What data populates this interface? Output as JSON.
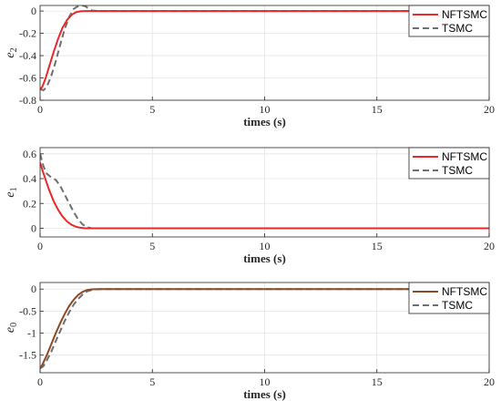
{
  "chart_data": [
    {
      "type": "line",
      "xlabel": "times (s)",
      "ylabel": "e",
      "ylabel_sub": "2",
      "xlim": [
        0,
        20
      ],
      "ylim": [
        -0.8,
        0.05
      ],
      "xticks": [
        0,
        5,
        10,
        15,
        20
      ],
      "yticks": [
        0,
        -0.2,
        -0.4,
        -0.6,
        -0.8
      ],
      "ytick_labels": [
        "0",
        "-0.2",
        "-0.4",
        "-0.6",
        "-0.8"
      ],
      "grid": true,
      "legend_position": "top-right",
      "series": [
        {
          "name": "NFTSMC",
          "color": "#e8282a",
          "dash": "solid",
          "x": [
            0,
            0.1,
            0.25,
            0.4,
            0.6,
            0.8,
            1.0,
            1.2,
            1.4,
            1.6,
            1.8,
            2.0,
            2.3,
            20
          ],
          "y": [
            -0.7,
            -0.68,
            -0.6,
            -0.5,
            -0.37,
            -0.25,
            -0.15,
            -0.08,
            -0.035,
            -0.01,
            -0.002,
            0,
            0,
            0
          ]
        },
        {
          "name": "TSMC",
          "color": "#6e6e6e",
          "dash": "dashed",
          "x": [
            0,
            0.15,
            0.3,
            0.5,
            0.7,
            0.9,
            1.1,
            1.3,
            1.5,
            1.7,
            1.85,
            2.0,
            2.15,
            2.3,
            2.6,
            20
          ],
          "y": [
            -0.7,
            -0.71,
            -0.68,
            -0.58,
            -0.45,
            -0.3,
            -0.16,
            -0.05,
            0.02,
            0.045,
            0.05,
            0.045,
            0.025,
            0.005,
            0,
            0
          ]
        }
      ]
    },
    {
      "type": "line",
      "xlabel": "times (s)",
      "ylabel": "e",
      "ylabel_sub": "1",
      "xlim": [
        0,
        20
      ],
      "ylim": [
        -0.07,
        0.65
      ],
      "xticks": [
        0,
        5,
        10,
        15,
        20
      ],
      "yticks": [
        0.6,
        0.4,
        0.2,
        0
      ],
      "ytick_labels": [
        "0.6",
        "0.4",
        "0.2",
        "0"
      ],
      "grid": true,
      "legend_position": "top-right",
      "series": [
        {
          "name": "NFTSMC",
          "color": "#e8282a",
          "dash": "solid",
          "x": [
            0,
            0.1,
            0.25,
            0.4,
            0.6,
            0.8,
            1.0,
            1.2,
            1.4,
            1.6,
            1.8,
            2.0,
            2.5,
            20
          ],
          "y": [
            0.53,
            0.47,
            0.39,
            0.31,
            0.22,
            0.15,
            0.095,
            0.055,
            0.028,
            0.012,
            0.004,
            0,
            0,
            0
          ]
        },
        {
          "name": "TSMC",
          "color": "#6e6e6e",
          "dash": "dashed",
          "x": [
            0,
            0.15,
            0.3,
            0.5,
            0.7,
            0.9,
            1.1,
            1.3,
            1.5,
            1.7,
            1.9,
            2.1,
            2.3,
            2.6,
            20
          ],
          "y": [
            0.6,
            0.5,
            0.44,
            0.41,
            0.39,
            0.34,
            0.27,
            0.2,
            0.13,
            0.07,
            0.03,
            0.008,
            0,
            0,
            0
          ]
        }
      ]
    },
    {
      "type": "line",
      "xlabel": "times (s)",
      "ylabel": "e",
      "ylabel_sub": "0",
      "xlim": [
        0,
        20
      ],
      "ylim": [
        -1.9,
        0.15
      ],
      "xticks": [
        0,
        5,
        10,
        15,
        20
      ],
      "yticks": [
        0,
        -0.5,
        -1,
        -1.5
      ],
      "ytick_labels": [
        "0",
        "-0.5",
        "-1",
        "-1.5"
      ],
      "grid": true,
      "legend_position": "top-right",
      "series": [
        {
          "name": "NFTSMC",
          "color": "#8b4a24",
          "dash": "solid",
          "x": [
            0,
            0.1,
            0.3,
            0.5,
            0.7,
            0.9,
            1.1,
            1.3,
            1.5,
            1.7,
            1.9,
            2.1,
            2.3,
            2.6,
            20
          ],
          "y": [
            -1.8,
            -1.72,
            -1.5,
            -1.25,
            -1.0,
            -0.77,
            -0.56,
            -0.38,
            -0.24,
            -0.13,
            -0.06,
            -0.02,
            -0.005,
            0,
            0
          ]
        },
        {
          "name": "TSMC",
          "color": "#6e6e6e",
          "dash": "dashed",
          "x": [
            0,
            0.15,
            0.3,
            0.5,
            0.7,
            0.9,
            1.1,
            1.3,
            1.5,
            1.7,
            1.9,
            2.1,
            2.3,
            2.5,
            2.8,
            20
          ],
          "y": [
            -1.8,
            -1.75,
            -1.62,
            -1.42,
            -1.18,
            -0.95,
            -0.72,
            -0.52,
            -0.35,
            -0.22,
            -0.12,
            -0.05,
            -0.02,
            -0.005,
            0,
            0
          ]
        }
      ]
    }
  ]
}
